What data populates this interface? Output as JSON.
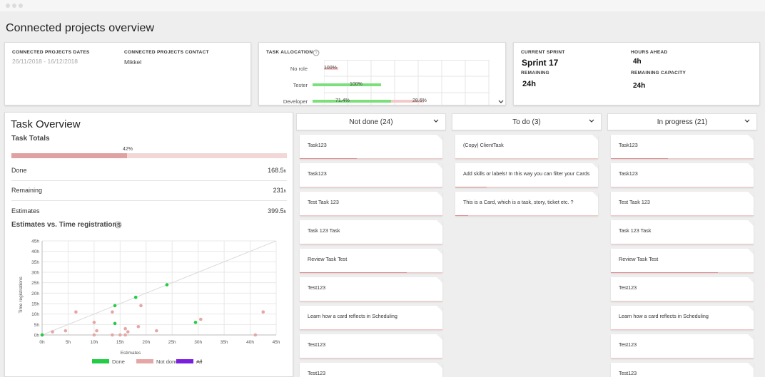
{
  "page_title": "Connected projects overview",
  "connected_projects": {
    "dates_label": "CONNECTED PROJECTS DATES",
    "dates_value": "26/11/2018 - 16/12/2018",
    "contact_label": "CONNECTED PROJECTS CONTACT",
    "contact_value": "Mikkel"
  },
  "task_allocation": {
    "title": "TASK ALLOCATION",
    "help_icon": "question-circle-icon",
    "rows": [
      {
        "label": "No role",
        "percent_text": "100%",
        "green_fraction": 0.0
      },
      {
        "label": "Tester",
        "percent_text": "100%",
        "green_fraction": 1.0
      },
      {
        "label": "Developer",
        "percent_text": "71.4%",
        "percent_text_2": "28.6%",
        "green_fraction": 0.714
      }
    ],
    "expand_icon": "chevron-down-icon"
  },
  "sprint": {
    "current_sprint_label": "CURRENT SPRINT",
    "current_sprint_value": "Sprint 17",
    "hours_ahead_label": "HOURS AHEAD",
    "hours_ahead_value": "4h",
    "remaining_label": "REMAINING",
    "remaining_value": "24h",
    "remaining_capacity_label": "REMAINING CAPACITY",
    "remaining_capacity_value": "24h"
  },
  "task_overview": {
    "title": "Task Overview",
    "totals_label": "Task Totals",
    "progress_text": "42%",
    "progress_fraction": 0.42,
    "rows": [
      {
        "label": "Done",
        "value": "168.5",
        "unit": "h"
      },
      {
        "label": "Remaining",
        "value": "231",
        "unit": "h"
      },
      {
        "label": "Estimates",
        "value": "399.5",
        "unit": "h"
      }
    ],
    "chart_title": "Estimates vs. Time registrations",
    "help_icon": "question-circle-icon"
  },
  "chart_data": {
    "type": "scatter",
    "title": "",
    "xlabel": "Estimates",
    "ylabel": "Time registrations",
    "xlim": [
      0,
      45
    ],
    "ylim": [
      0,
      45
    ],
    "x_ticks": [
      "0h",
      "5h",
      "10h",
      "15h",
      "20h",
      "25h",
      "30h",
      "35h",
      "40h",
      "45h"
    ],
    "y_ticks": [
      "0h",
      "5h",
      "10h",
      "15h",
      "20h",
      "25h",
      "30h",
      "35h",
      "40h",
      "45h"
    ],
    "grid": true,
    "diagonal_reference": true,
    "legend_position": "bottom",
    "series": [
      {
        "name": "Done",
        "color": "#22cc44",
        "points": [
          [
            0,
            0
          ],
          [
            14,
            14
          ],
          [
            14,
            5.5
          ],
          [
            18,
            18
          ],
          [
            24,
            24
          ],
          [
            29.5,
            6
          ]
        ]
      },
      {
        "name": "Not done",
        "color": "#e5a6a6",
        "points": [
          [
            0,
            0
          ],
          [
            2,
            1.5
          ],
          [
            4.5,
            2
          ],
          [
            6.5,
            11
          ],
          [
            10,
            6
          ],
          [
            10,
            0
          ],
          [
            10.5,
            2
          ],
          [
            13.5,
            11
          ],
          [
            13.5,
            0
          ],
          [
            15,
            0
          ],
          [
            16,
            3
          ],
          [
            16.5,
            1.5
          ],
          [
            16,
            0
          ],
          [
            18.5,
            4
          ],
          [
            19,
            14
          ],
          [
            22,
            2
          ],
          [
            30.5,
            7.5
          ],
          [
            41,
            0
          ],
          [
            42.5,
            11
          ]
        ]
      },
      {
        "name": "All",
        "color": "#7a1ee0",
        "points": [],
        "strikethrough": true
      }
    ]
  },
  "columns": [
    {
      "title": "Not done (24)",
      "cards": [
        {
          "name": "Task123",
          "progress": 0.4
        },
        {
          "name": "Task123",
          "progress": 0.0
        },
        {
          "name": "Test Task 123",
          "progress": 0.0
        },
        {
          "name": "Task 123 Task",
          "progress": 0.0
        },
        {
          "name": "Review Task Test",
          "progress": 0.75
        },
        {
          "name": "Test123",
          "progress": 0.0
        },
        {
          "name": "Learn how a card reflects in Scheduling",
          "progress": 0.0
        },
        {
          "name": "Test123",
          "progress": 0.0
        },
        {
          "name": "Test123",
          "progress": 0.0
        }
      ]
    },
    {
      "title": "To do (3)",
      "cards": [
        {
          "name": "(Copy) ClientTask",
          "progress": 0.0
        },
        {
          "name": "Add skills or labels! In this way you can filter your Cards",
          "progress": 0.22
        },
        {
          "name": "This is a Card, which is a task, story, ticket etc. ?",
          "progress": 0.09
        }
      ]
    },
    {
      "title": "In progress (21)",
      "cards": [
        {
          "name": "Task123",
          "progress": 0.4
        },
        {
          "name": "Task123",
          "progress": 0.0
        },
        {
          "name": "Test Task 123",
          "progress": 0.0
        },
        {
          "name": "Task 123 Task",
          "progress": 0.0
        },
        {
          "name": "Review Task Test",
          "progress": 0.75
        },
        {
          "name": "Test123",
          "progress": 0.0
        },
        {
          "name": "Learn how a card reflects in Scheduling",
          "progress": 0.0
        },
        {
          "name": "Test123",
          "progress": 0.0
        },
        {
          "name": "Test123",
          "progress": 0.0
        }
      ]
    }
  ]
}
